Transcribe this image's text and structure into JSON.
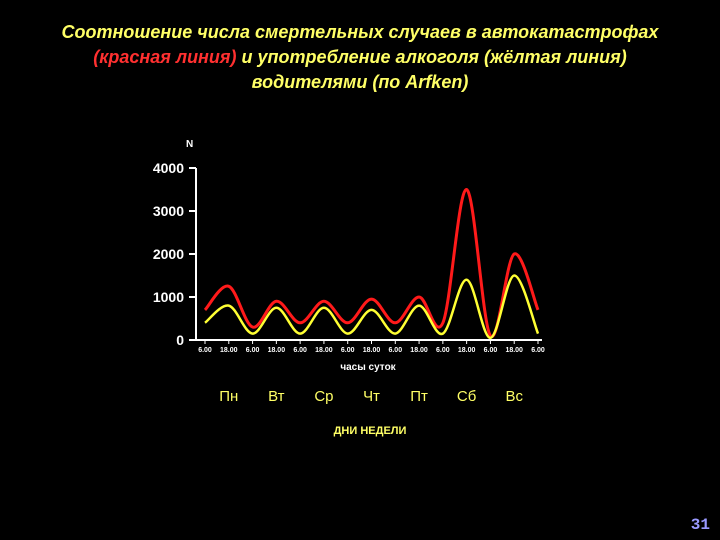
{
  "title": {
    "line1": "Соотношение числа смертельных случаев в автокатастрофах",
    "line2_red": "(красная линия)",
    "line2_rest": " и употребление алкоголя (жёлтая линия)",
    "line3": "водителями (по Arfken)"
  },
  "slide_number": "31",
  "colors": {
    "background": "#000000",
    "title": "#ffff66",
    "title_red": "#ff3030",
    "fatalities": "#ff1a1a",
    "alcohol": "#ffff33",
    "axis": "#ffffff"
  },
  "chart_data": {
    "type": "line",
    "ylabel": "N",
    "xlabel": "часы суток",
    "xlabel2": "ДНИ НЕДЕЛИ",
    "ylim": [
      0,
      4000
    ],
    "yticks": [
      "0",
      "1000",
      "2000",
      "3000",
      "4000"
    ],
    "xlim": [
      0,
      14
    ],
    "xtick_labels": [
      "6.00",
      "18.00",
      "6.00",
      "18.00",
      "6.00",
      "18.00",
      "6.00",
      "18.00",
      "6.00",
      "18.00",
      "6.00",
      "18.00",
      "6.00",
      "18.00",
      "6.00"
    ],
    "days": [
      "Пн",
      "Вт",
      "Ср",
      "Чт",
      "Пт",
      "Сб",
      "Вс"
    ],
    "grid": false,
    "series": [
      {
        "color": "#ff1a1a",
        "x": [
          0,
          1,
          2,
          3,
          4,
          5,
          6,
          7,
          8,
          9,
          10,
          11,
          12,
          13,
          14
        ],
        "values": [
          700,
          1250,
          300,
          900,
          400,
          900,
          400,
          950,
          400,
          1000,
          400,
          3500,
          100,
          2000,
          700
        ]
      },
      {
        "color": "#ffff33",
        "x": [
          0,
          1,
          2,
          3,
          4,
          5,
          6,
          7,
          8,
          9,
          10,
          11,
          12,
          13,
          14
        ],
        "values": [
          400,
          800,
          150,
          750,
          150,
          750,
          150,
          700,
          150,
          800,
          150,
          1400,
          50,
          1500,
          150
        ]
      }
    ]
  }
}
